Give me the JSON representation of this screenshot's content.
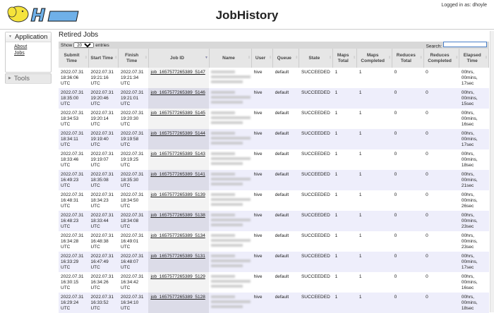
{
  "header": {
    "title": "JobHistory",
    "login": "Logged in as: dhoyle",
    "logo_text": "hadoop"
  },
  "sidebar": {
    "application": "Application",
    "items": [
      {
        "label": "About"
      },
      {
        "label": "Jobs"
      }
    ],
    "tools": "Tools"
  },
  "main": {
    "heading": "Retired Jobs",
    "show_prefix": "Show",
    "page_size": "20",
    "show_suffix": "entries",
    "search_label": "Search:",
    "search_value": "",
    "columns": [
      "Submit Time",
      "Start Time",
      "Finish Time",
      "Job ID",
      "Name",
      "User",
      "Queue",
      "State",
      "Maps Total",
      "Maps Completed",
      "Reduces Total",
      "Reduces Completed",
      "Elapsed Time"
    ],
    "sorted_column": "Job ID",
    "rows": [
      {
        "submit": "2022.07.31 18:36:06 UTC",
        "start": "2022.07.31 19:21:16 UTC",
        "finish": "2022.07.31 19:21:34 UTC",
        "id": "job_1657577265389_5147",
        "user": "hive",
        "queue": "default",
        "state": "SUCCEEDED",
        "maps_total": "1",
        "maps_done": "1",
        "red_total": "0",
        "red_done": "0",
        "elapsed": "00hrs, 00mins, 17sec"
      },
      {
        "submit": "2022.07.31 18:35:00 UTC",
        "start": "2022.07.31 19:20:46 UTC",
        "finish": "2022.07.31 19:21:01 UTC",
        "id": "job_1657577265389_5146",
        "user": "hive",
        "queue": "default",
        "state": "SUCCEEDED",
        "maps_total": "1",
        "maps_done": "1",
        "red_total": "0",
        "red_done": "0",
        "elapsed": "00hrs, 00mins, 15sec"
      },
      {
        "submit": "2022.07.31 18:34:53 UTC",
        "start": "2022.07.31 19:20:14 UTC",
        "finish": "2022.07.31 19:20:30 UTC",
        "id": "job_1657577265389_5145",
        "user": "hive",
        "queue": "default",
        "state": "SUCCEEDED",
        "maps_total": "1",
        "maps_done": "1",
        "red_total": "0",
        "red_done": "0",
        "elapsed": "00hrs, 00mins, 16sec"
      },
      {
        "submit": "2022.07.31 18:34:11 UTC",
        "start": "2022.07.31 19:19:40 UTC",
        "finish": "2022.07.31 19:19:58 UTC",
        "id": "job_1657577265389_5144",
        "user": "hive",
        "queue": "default",
        "state": "SUCCEEDED",
        "maps_total": "1",
        "maps_done": "1",
        "red_total": "0",
        "red_done": "0",
        "elapsed": "00hrs, 00mins, 17sec"
      },
      {
        "submit": "2022.07.31 18:33:46 UTC",
        "start": "2022.07.31 19:19:07 UTC",
        "finish": "2022.07.31 19:19:25 UTC",
        "id": "job_1657577265389_5143",
        "user": "hive",
        "queue": "default",
        "state": "SUCCEEDED",
        "maps_total": "1",
        "maps_done": "1",
        "red_total": "0",
        "red_done": "0",
        "elapsed": "00hrs, 00mins, 18sec"
      },
      {
        "submit": "2022.07.31 16:49:23 UTC",
        "start": "2022.07.31 18:35:08 UTC",
        "finish": "2022.07.31 18:35:30 UTC",
        "id": "job_1657577265389_5141",
        "user": "hive",
        "queue": "default",
        "state": "SUCCEEDED",
        "maps_total": "1",
        "maps_done": "1",
        "red_total": "0",
        "red_done": "0",
        "elapsed": "00hrs, 00mins, 21sec"
      },
      {
        "submit": "2022.07.31 16:48:31 UTC",
        "start": "2022.07.31 18:34:23 UTC",
        "finish": "2022.07.31 18:34:50 UTC",
        "id": "job_1657577265389_5139",
        "user": "hive",
        "queue": "default",
        "state": "SUCCEEDED",
        "maps_total": "1",
        "maps_done": "1",
        "red_total": "0",
        "red_done": "0",
        "elapsed": "00hrs, 00mins, 26sec"
      },
      {
        "submit": "2022.07.31 16:48:23 UTC",
        "start": "2022.07.31 18:33:44 UTC",
        "finish": "2022.07.31 18:34:08 UTC",
        "id": "job_1657577265389_5138",
        "user": "hive",
        "queue": "default",
        "state": "SUCCEEDED",
        "maps_total": "1",
        "maps_done": "1",
        "red_total": "0",
        "red_done": "0",
        "elapsed": "00hrs, 00mins, 23sec"
      },
      {
        "submit": "2022.07.31 16:34:28 UTC",
        "start": "2022.07.31 16:48:38 UTC",
        "finish": "2022.07.31 16:49:01 UTC",
        "id": "job_1657577265389_5134",
        "user": "hive",
        "queue": "default",
        "state": "SUCCEEDED",
        "maps_total": "1",
        "maps_done": "1",
        "red_total": "0",
        "red_done": "0",
        "elapsed": "00hrs, 00mins, 23sec"
      },
      {
        "submit": "2022.07.31 16:33:29 UTC",
        "start": "2022.07.31 16:47:49 UTC",
        "finish": "2022.07.31 16:48:07 UTC",
        "id": "job_1657577265389_5131",
        "user": "hive",
        "queue": "default",
        "state": "SUCCEEDED",
        "maps_total": "1",
        "maps_done": "1",
        "red_total": "0",
        "red_done": "0",
        "elapsed": "00hrs, 00mins, 17sec"
      },
      {
        "submit": "2022.07.31 16:30:15 UTC",
        "start": "2022.07.31 16:34:26 UTC",
        "finish": "2022.07.31 16:34:42 UTC",
        "id": "job_1657577265389_5129",
        "user": "hive",
        "queue": "default",
        "state": "SUCCEEDED",
        "maps_total": "1",
        "maps_done": "1",
        "red_total": "0",
        "red_done": "0",
        "elapsed": "00hrs, 00mins, 16sec"
      },
      {
        "submit": "2022.07.31 16:29:24 UTC",
        "start": "2022.07.31 16:33:52 UTC",
        "finish": "2022.07.31 16:34:10 UTC",
        "id": "job_1657577265389_5128",
        "user": "hive",
        "queue": "default",
        "state": "SUCCEEDED",
        "maps_total": "1",
        "maps_done": "1",
        "red_total": "0",
        "red_done": "0",
        "elapsed": "00hrs, 00mins, 18sec"
      }
    ]
  },
  "colors": {
    "logo_yellow": "#f5e33b",
    "logo_blue": "#6fb0e8",
    "even_row": "#eeeefb",
    "toolbar": "#d8d8d8"
  }
}
